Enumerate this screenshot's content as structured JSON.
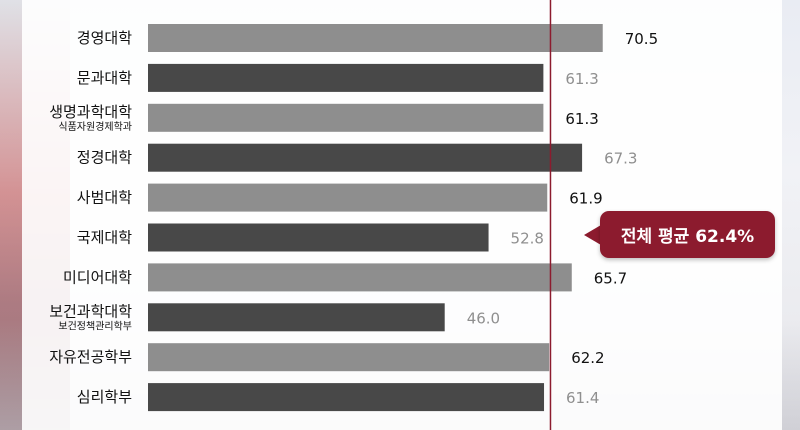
{
  "chart_data": {
    "type": "bar",
    "orientation": "horizontal",
    "categories": [
      {
        "label": "경영대학",
        "sub": ""
      },
      {
        "label": "문과대학",
        "sub": ""
      },
      {
        "label": "생명과학대학",
        "sub": "식품자원경제학과"
      },
      {
        "label": "정경대학",
        "sub": ""
      },
      {
        "label": "사범대학",
        "sub": ""
      },
      {
        "label": "국제대학",
        "sub": ""
      },
      {
        "label": "미디어대학",
        "sub": ""
      },
      {
        "label": "보건과학대학",
        "sub": "보건정책관리학부"
      },
      {
        "label": "자유전공학부",
        "sub": ""
      },
      {
        "label": "심리학부",
        "sub": ""
      }
    ],
    "values": [
      70.5,
      61.3,
      61.3,
      67.3,
      61.9,
      52.8,
      65.7,
      46.0,
      62.2,
      61.4
    ],
    "value_labels": [
      "70.5",
      "61.3",
      "61.3",
      "67.3",
      "61.9",
      "52.8",
      "65.7",
      "46.0",
      "62.2",
      "61.4"
    ],
    "bar_colors": [
      "#8e8e8e",
      "#484848",
      "#8e8e8e",
      "#484848",
      "#8e8e8e",
      "#484848",
      "#8e8e8e",
      "#484848",
      "#8e8e8e",
      "#484848"
    ],
    "label_colors": [
      "#111111",
      "#8f8f8f",
      "#111111",
      "#8f8f8f",
      "#111111",
      "#8f8f8f",
      "#111111",
      "#8f8f8f",
      "#111111",
      "#8f8f8f"
    ],
    "average": 62.4,
    "average_label": "전체 평균 62.4%",
    "average_line_color": "#8c1b2e",
    "callout_color": "#8c1b2e",
    "xlim": [
      0,
      80
    ],
    "grid": false,
    "legend": "none"
  }
}
